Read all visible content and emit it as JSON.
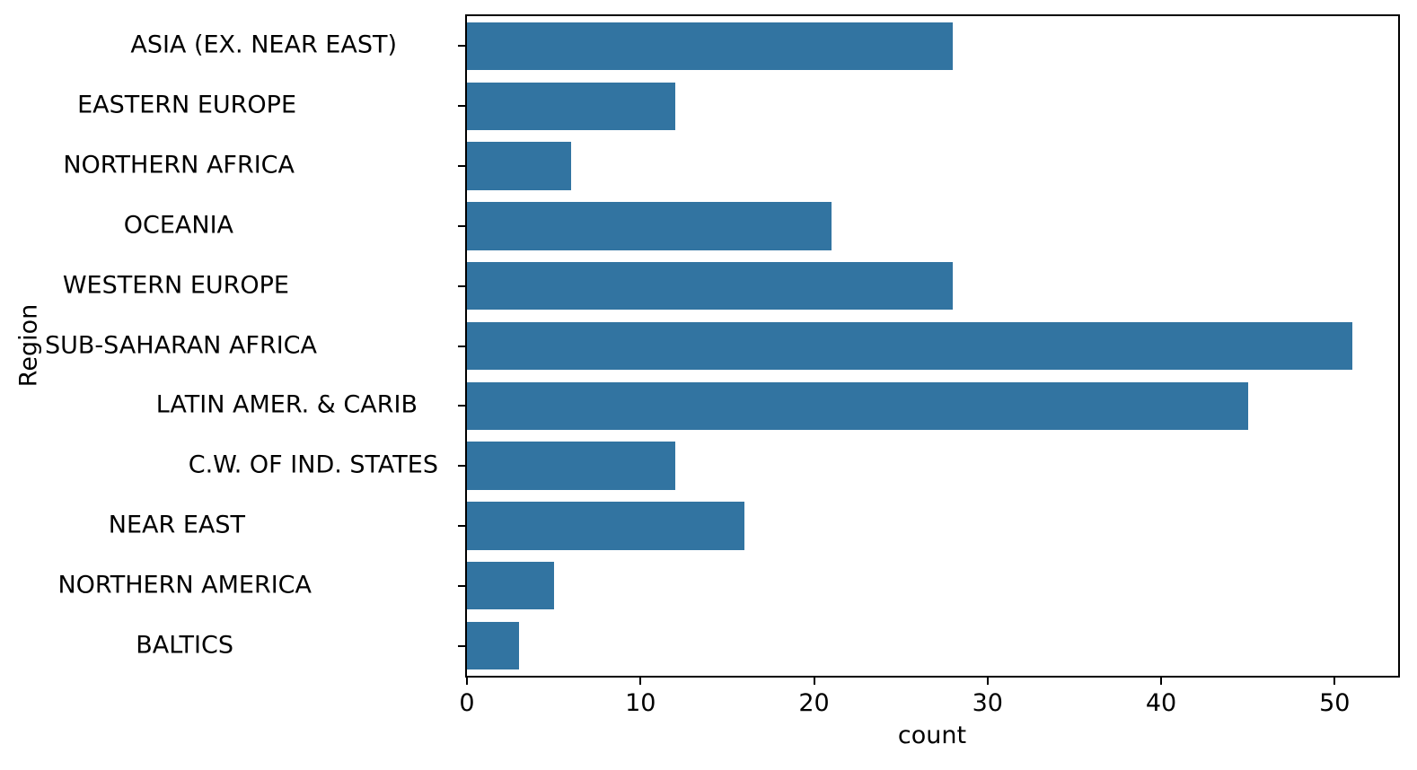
{
  "chart_data": {
    "type": "bar",
    "orientation": "horizontal",
    "title": "",
    "xlabel": "count",
    "ylabel": "Region",
    "categories": [
      "ASIA (EX. NEAR EAST)",
      "EASTERN EUROPE",
      "NORTHERN AFRICA",
      "OCEANIA",
      "WESTERN EUROPE",
      "SUB-SAHARAN AFRICA",
      "LATIN AMER. & CARIB",
      "C.W. OF IND. STATES",
      "NEAR EAST",
      "NORTHERN AMERICA",
      "BALTICS"
    ],
    "values": [
      28,
      12,
      6,
      21,
      28,
      51,
      45,
      12,
      16,
      5,
      3
    ],
    "xticks": [
      0,
      10,
      20,
      30,
      40,
      50
    ],
    "xlim": [
      0,
      53.66
    ],
    "grid": false,
    "legend": null,
    "bar_color": "#3274a1",
    "axis_color": "#000000",
    "text_color": "#000000",
    "background_color": "#ffffff"
  }
}
